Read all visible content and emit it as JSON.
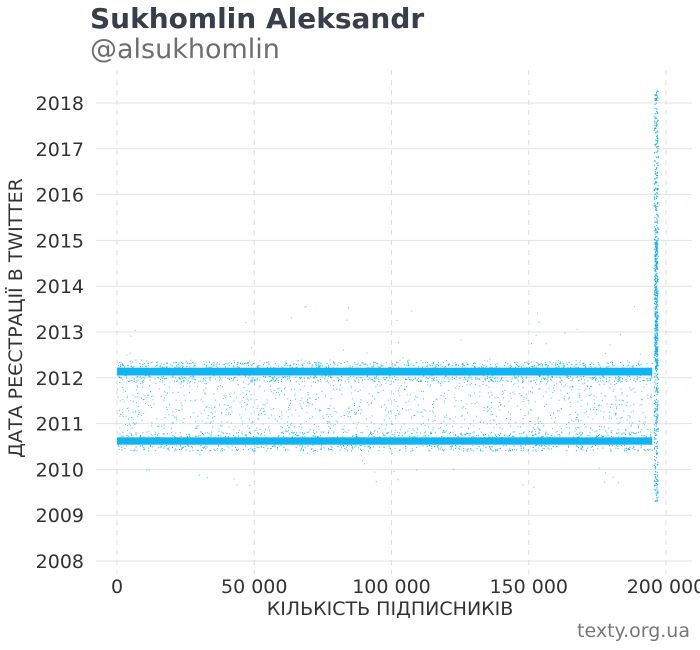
{
  "header": {
    "title": "Sukhomlin Aleksandr",
    "subtitle": "@alsukhomlin"
  },
  "footer": {
    "source": "texty.org.ua"
  },
  "chart_data": {
    "type": "scatter",
    "xlabel": "КІЛЬКІСТЬ ПІДПИСНИКІВ",
    "ylabel": "ДАТА РЕЄСТРАЦІЇ В TWITTER",
    "xlim": [
      -7000,
      207000
    ],
    "ylim": [
      2007.8,
      2018.6
    ],
    "x_ticks": [
      0,
      50000,
      100000,
      150000,
      200000
    ],
    "x_tick_labels": [
      "0",
      "50 000",
      "100 000",
      "150 000",
      "200 000"
    ],
    "y_ticks": [
      2008,
      2009,
      2010,
      2011,
      2012,
      2013,
      2014,
      2015,
      2016,
      2017,
      2018
    ],
    "y_tick_labels": [
      "2008",
      "2009",
      "2010",
      "2011",
      "2012",
      "2013",
      "2014",
      "2015",
      "2016",
      "2017",
      "2018"
    ],
    "grid": true,
    "point_color": "#0fb4f0",
    "bands": [
      {
        "x": [
          0,
          195000
        ],
        "y": [
          2012.05,
          2012.22
        ]
      },
      {
        "x": [
          0,
          195000
        ],
        "y": [
          2010.54,
          2010.7
        ]
      }
    ],
    "sparse_region": {
      "x": [
        0,
        195000
      ],
      "y": [
        2010.8,
        2012.4
      ]
    },
    "spike": {
      "x": [
        195500,
        197000
      ],
      "y": [
        2009.3,
        2018.28
      ]
    }
  }
}
